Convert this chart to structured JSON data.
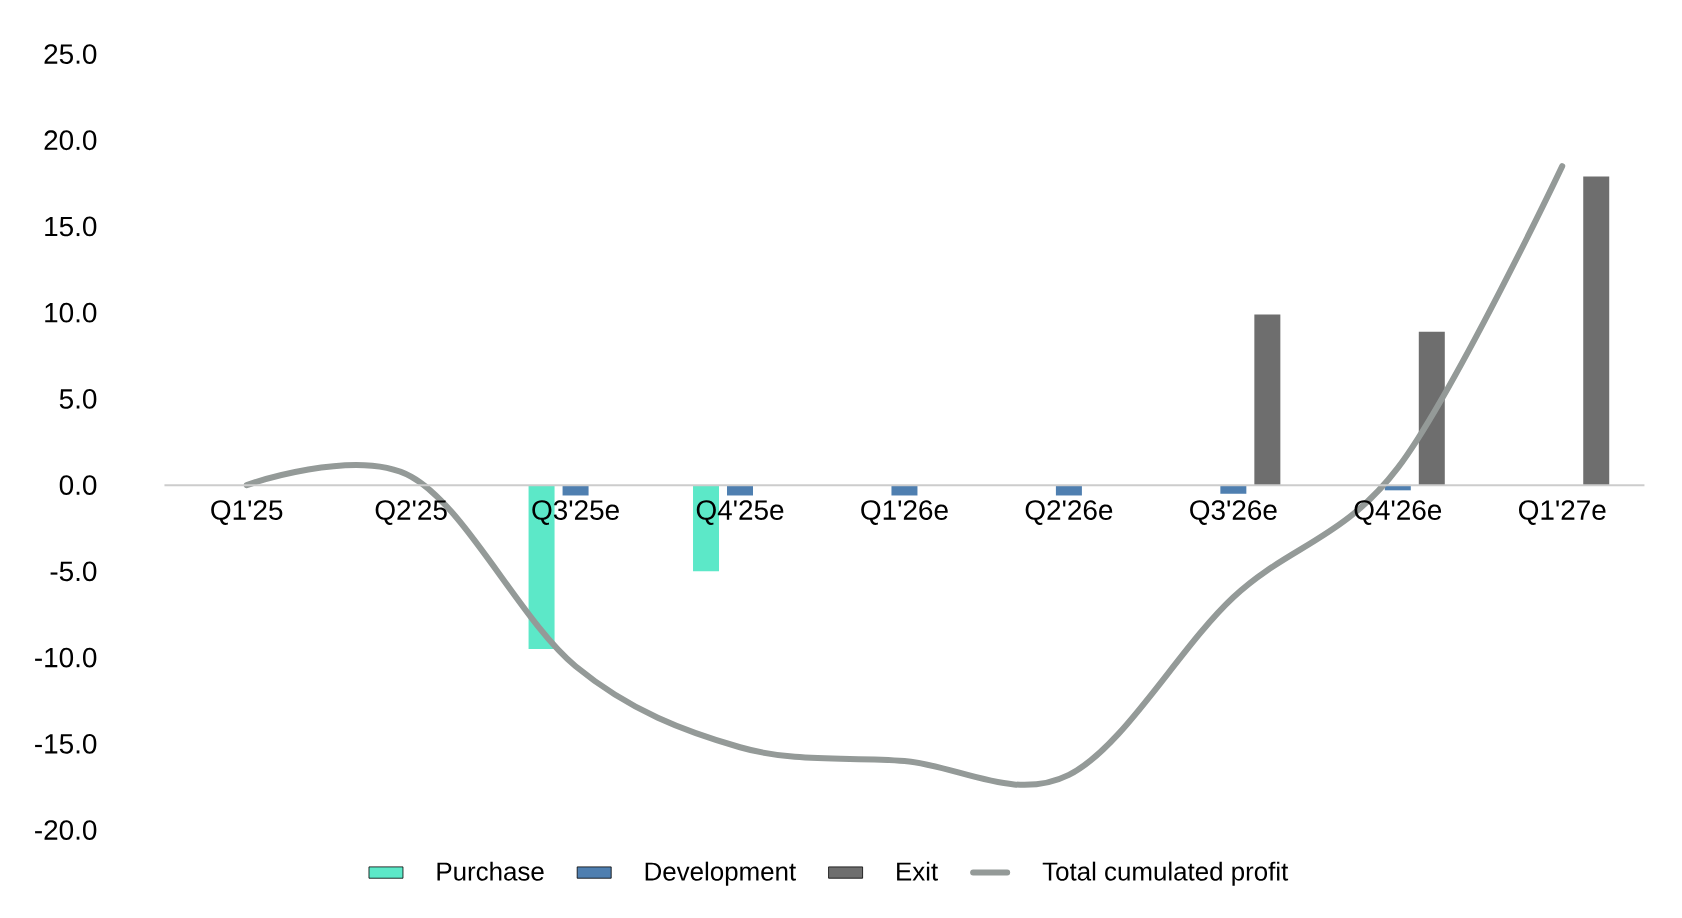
{
  "chart_data": {
    "type": "bar",
    "categories": [
      "Q1'25",
      "Q2'25",
      "Q3'25e",
      "Q4'25e",
      "Q1'26e",
      "Q2'26e",
      "Q3'26e",
      "Q4'26e",
      "Q1'27e"
    ],
    "series": [
      {
        "name": "Purchase",
        "color": "#5ce8c8",
        "values": [
          null,
          null,
          -9.5,
          -5.0,
          null,
          null,
          null,
          null,
          null
        ]
      },
      {
        "name": "Development",
        "color": "#4f7fb0",
        "values": [
          null,
          null,
          -0.6,
          -0.6,
          -0.6,
          -0.6,
          -0.5,
          -0.3,
          null
        ]
      },
      {
        "name": "Exit",
        "color": "#6e6e6e",
        "values": [
          null,
          null,
          null,
          null,
          null,
          null,
          9.9,
          8.9,
          17.9
        ]
      },
      {
        "name": "Total cumulated profit",
        "type": "line",
        "color": "#949a98",
        "values": [
          0.0,
          0.5,
          -10.5,
          -15.2,
          -16.0,
          -16.8,
          -6.5,
          1.0,
          18.5
        ]
      }
    ],
    "ylim": [
      -20,
      25
    ],
    "yticks": [
      {
        "value": -20,
        "label": "-20.0"
      },
      {
        "value": -15,
        "label": "-15.0"
      },
      {
        "value": -10,
        "label": "-10.0"
      },
      {
        "value": -5,
        "label": "-5.0"
      },
      {
        "value": 0,
        "label": "0.0"
      },
      {
        "value": 5,
        "label": "5.0"
      },
      {
        "value": 10,
        "label": "10.0"
      },
      {
        "value": 15,
        "label": "15.0"
      },
      {
        "value": 20,
        "label": "20.0"
      },
      {
        "value": 25,
        "label": "25.0"
      }
    ],
    "grid": false,
    "legend": "bottom"
  }
}
